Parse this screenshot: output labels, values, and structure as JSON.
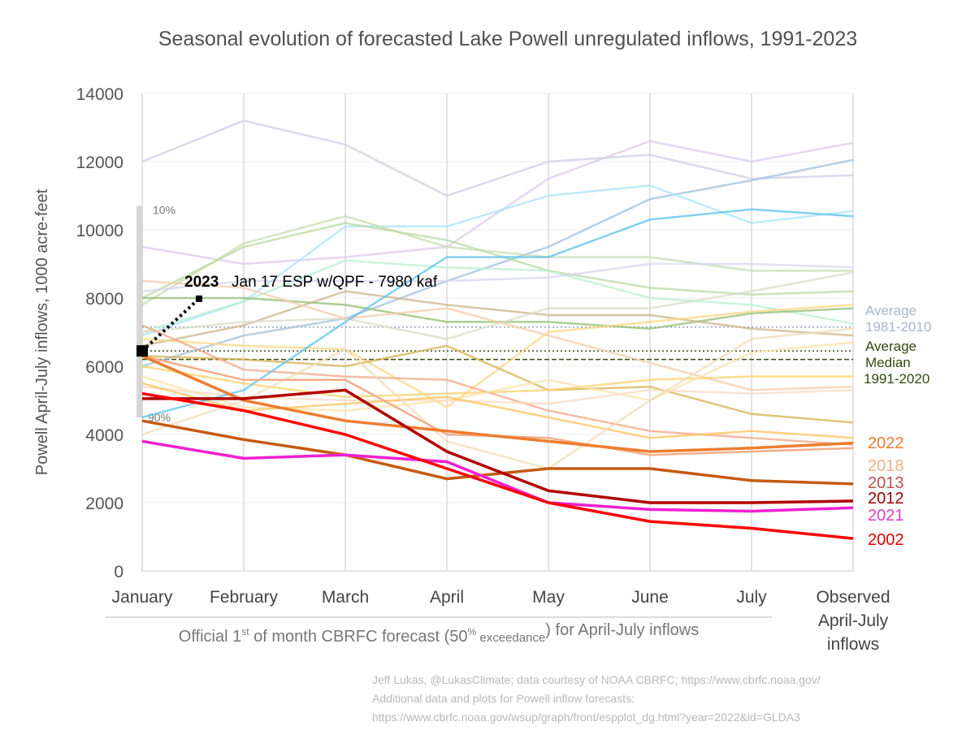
{
  "chart_data": {
    "type": "line",
    "title": "Seasonal evolution of forecasted Lake Powell unregulated inflows, 1991-2023",
    "ylabel": "Powell April-July inflows, 1000 acre-feet",
    "xlabel": "Official 1st of month CBRFC forecast (50% exceedance) for April-July inflows",
    "xlabel_parts": {
      "pre": "Official 1",
      "sup1": "st",
      "mid": " of month CBRFC forecast (50",
      "sup2": "%",
      "small": " exceedance",
      "post": ") for April-July inflows"
    },
    "categories": [
      "January",
      "February",
      "March",
      "April",
      "May",
      "June",
      "July",
      "Observed April-July inflows"
    ],
    "category_lines": [
      [
        "January"
      ],
      [
        "February"
      ],
      [
        "March"
      ],
      [
        "April"
      ],
      [
        "May"
      ],
      [
        "June"
      ],
      [
        "July"
      ],
      [
        "Observed",
        "April-July",
        "inflows"
      ]
    ],
    "ylim": [
      0,
      14000
    ],
    "yticks": [
      0,
      2000,
      4000,
      6000,
      8000,
      10000,
      12000,
      14000
    ],
    "grid": true,
    "background_series": [
      {
        "color": "#c9cfe3",
        "values": [
          12000,
          13200,
          12500,
          11000,
          12000,
          12200,
          11500,
          11600
        ]
      },
      {
        "color": "#dcc8e8",
        "values": [
          9500,
          9000,
          9200,
          9500,
          11500,
          12600,
          12000,
          12550
        ]
      },
      {
        "color": "#9fbfdc",
        "values": [
          6000,
          6900,
          7400,
          8500,
          9500,
          10900,
          11450,
          12050
        ]
      },
      {
        "color": "#a8e3f5",
        "values": [
          6900,
          7900,
          10100,
          10100,
          11000,
          11300,
          10200,
          10550
        ]
      },
      {
        "color": "#c5dcb0",
        "values": [
          7800,
          9600,
          10400,
          9500,
          9200,
          9200,
          8800,
          8800
        ]
      },
      {
        "color": "#b9d9a0",
        "values": [
          8000,
          9500,
          10200,
          9700,
          8800,
          8300,
          8100,
          8200
        ]
      },
      {
        "color": "#b5f0d0",
        "values": [
          7000,
          7900,
          9100,
          8900,
          8800,
          8000,
          7800,
          7250
        ]
      },
      {
        "color": "#d5d5f0",
        "values": [
          8200,
          8500,
          8500,
          8500,
          8600,
          9000,
          9000,
          8900
        ]
      },
      {
        "color": "#8dbf70",
        "values": [
          8000,
          8000,
          7800,
          7300,
          7300,
          7100,
          7550,
          7700
        ]
      },
      {
        "color": "#c9b48a",
        "values": [
          6600,
          7200,
          8200,
          7800,
          7500,
          7500,
          7100,
          6900
        ]
      },
      {
        "color": "#d9dcc5",
        "values": [
          7000,
          7300,
          7400,
          6800,
          7700,
          7700,
          8200,
          8750
        ]
      },
      {
        "color": "#f6c9a9",
        "values": [
          8500,
          8300,
          7400,
          7700,
          6900,
          6100,
          5300,
          5400
        ]
      },
      {
        "color": "#fcd581",
        "values": [
          6800,
          6600,
          6500,
          4800,
          7000,
          7300,
          7600,
          7800
        ]
      },
      {
        "color": "#d4b04e",
        "values": [
          6300,
          6200,
          6000,
          6600,
          5300,
          5400,
          4600,
          4350
        ]
      },
      {
        "color": "#fcd06a",
        "values": [
          6000,
          5500,
          5100,
          5200,
          5300,
          5600,
          5700,
          5700
        ]
      },
      {
        "color": "#f0a583",
        "values": [
          7200,
          5900,
          5700,
          5600,
          4700,
          4100,
          3900,
          3700
        ]
      },
      {
        "color": "#fbe3a8",
        "values": [
          5700,
          4800,
          4700,
          5000,
          5600,
          5000,
          6400,
          6700
        ]
      },
      {
        "color": "#fbd9c0",
        "values": [
          5400,
          5100,
          5000,
          5000,
          4900,
          5300,
          5200,
          5300
        ]
      },
      {
        "color": "#fdc25a",
        "values": [
          5500,
          4700,
          4900,
          5100,
          4500,
          3900,
          4100,
          3900
        ]
      },
      {
        "color": "#eedcb5",
        "values": [
          4000,
          5000,
          6500,
          3800,
          3000,
          5000,
          6800,
          7100
        ]
      },
      {
        "color": "#5bc0eb",
        "values": [
          4500,
          5300,
          7300,
          9200,
          9200,
          10300,
          10600,
          10400
        ]
      }
    ],
    "highlight_series": [
      {
        "name": "2018",
        "color": "#f2ad8a",
        "values": [
          6300,
          5600,
          5600,
          4000,
          3900,
          3400,
          3500,
          3600
        ]
      },
      {
        "name": "2022",
        "color": "#ed7d31",
        "values": [
          6300,
          5000,
          4400,
          4100,
          3800,
          3500,
          3600,
          3750
        ]
      },
      {
        "name": "2013",
        "color": "#c55a11",
        "values": [
          4400,
          3850,
          3400,
          2700,
          3000,
          3000,
          2650,
          2550
        ]
      },
      {
        "name": "2012",
        "color": "#b00000",
        "values": [
          5050,
          5050,
          5300,
          3500,
          2350,
          2000,
          2000,
          2050
        ]
      },
      {
        "name": "2021",
        "color": "#f020d0",
        "values": [
          3800,
          3300,
          3400,
          3200,
          2000,
          1800,
          1750,
          1850
        ]
      },
      {
        "name": "2002",
        "color": "#ff0000",
        "values": [
          5200,
          4700,
          4000,
          3000,
          2000,
          1450,
          1250,
          950
        ]
      }
    ],
    "label_colors": {
      "2022": "#ed7d31",
      "2018": "#f4b183",
      "2013": "#c0504d",
      "2012": "#a00000",
      "2021": "#e040c0",
      "2002": "#e00000"
    },
    "reference_lines": [
      {
        "name": "Average 1981-2010",
        "value": 7150,
        "color": "#8fa0c0",
        "style": "dotted"
      },
      {
        "name": "Average 1991-2020",
        "value": 6450,
        "color": "#3a4a10",
        "style": "dotted"
      },
      {
        "name": "Median 1991-2020",
        "value": 6200,
        "color": "#3a4a10",
        "style": "dashed"
      }
    ],
    "ref_labels": {
      "avg_8110_l1": "Average",
      "avg_8110_l2": "1981-2010",
      "avg_9120_l1": "Average",
      "med_l1": "Median",
      "period": "1991-2020"
    },
    "range_bar": {
      "low": 4500,
      "high": 10700,
      "low_label": "90%",
      "high_label": "10%"
    },
    "forecast_2023": {
      "year": "2023",
      "label": "Jan 17 ESP w/QPF - 7980 kaf",
      "jan1_value": 6450,
      "jan17_value": 7980
    }
  },
  "credits": {
    "line1": "Jeff Lukas, @LukasClimate; data courtesy of NOAA CBRFC; https://www.cbrfc.noaa.gov/",
    "line2": "Additional data and plots for Powell inflow forecasts:",
    "line3": "https://www.cbrfc.noaa.gov/wsup/graph/front/espplot_dg.html?year=2022&id=GLDA3"
  }
}
